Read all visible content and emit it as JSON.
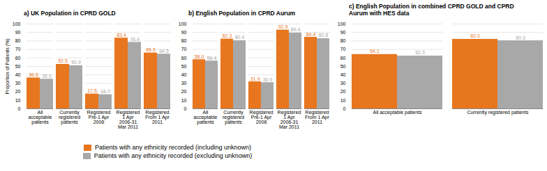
{
  "chart_data": [
    {
      "type": "bar",
      "title": "a) UK Population in CPRD GOLD",
      "categories": [
        "All\nacceptable\npatients",
        "Currently\nregistered\npatients",
        "Registered\nPre-1 Apr\n2006",
        "Registered\n1 Apr\n2006-31\nMar 2011",
        "Registered\nFrom 1 Apr\n2011"
      ],
      "series": [
        {
          "name": "Patients with any ethnicity recorded (including unknown)",
          "color": "#E8761E",
          "values": [
            36.5,
            52.5,
            17.5,
            83.4,
            65.9
          ],
          "value_labels": [
            "36.5",
            "52.5",
            "17.5",
            "83.4",
            "65.9"
          ]
        },
        {
          "name": "Patients with any ethnicity recorded (excluding unknown)",
          "color": "#A8A8A8",
          "values": [
            35.0,
            50.9,
            16.7,
            78.4,
            64.5
          ],
          "value_labels": [
            "35.0",
            "50.9",
            "16.7",
            "78.4",
            "64.5"
          ]
        }
      ],
      "ylabel": "Proportion of Patients (%)",
      "ylim": [
        0,
        100
      ],
      "yticks": [
        0,
        10,
        20,
        30,
        40,
        50,
        60,
        70,
        80,
        90,
        100
      ],
      "grid": true,
      "data_labels": true,
      "legend": "bottom"
    },
    {
      "type": "bar",
      "title": "b) English Population in CPRD Aurum",
      "categories": [
        "All\nacceptable\npatients",
        "Currently\nregistered\npatients",
        "Registered\nPre-1 Apr\n2006",
        "Registered\n1 Apr\n2006-31\nMar 2011",
        "Registered\nFrom 1 Apr\n2011"
      ],
      "series": [
        {
          "name": "Patients with any ethnicity recorded (including unknown)",
          "color": "#E8761E",
          "values": [
            58.0,
            82.3,
            31.9,
            92.9,
            84.4
          ],
          "value_labels": [
            "58.0",
            "82.3",
            "31.9",
            "92.9",
            "84.4"
          ]
        },
        {
          "name": "Patients with any ethnicity recorded (excluding unknown)",
          "color": "#A8A8A8",
          "values": [
            56.4,
            80.4,
            30.9,
            89.4,
            82.8
          ],
          "value_labels": [
            "56.4",
            "80.4",
            "30.9",
            "89.4",
            "82.8"
          ]
        }
      ],
      "ylim": [
        0,
        100
      ],
      "yticks": [
        0,
        10,
        20,
        30,
        40,
        50,
        60,
        70,
        80,
        90,
        100
      ],
      "grid": true,
      "data_labels": true,
      "legend": "bottom"
    },
    {
      "type": "bar",
      "title": "c) English Population in combined CPRD GOLD and CPRD\nAurum with HES data",
      "categories": [
        "All acceptable patients",
        "Currently registered patients"
      ],
      "series": [
        {
          "name": "Patients with any ethnicity recorded (including unknown)",
          "color": "#E8761E",
          "values": [
            64.1,
            82.0
          ],
          "value_labels": [
            "64.1",
            "82.0"
          ]
        },
        {
          "name": "Patients with any ethnicity recorded (excluding unknown)",
          "color": "#A8A8A8",
          "values": [
            62.3,
            80.3
          ],
          "value_labels": [
            "62.3",
            "80.3"
          ]
        }
      ],
      "ylim": [
        0,
        100
      ],
      "yticks": [
        0,
        10,
        20,
        30,
        40,
        50,
        60,
        70,
        80,
        90,
        100
      ],
      "grid": true,
      "data_labels": true,
      "legend": "bottom"
    }
  ]
}
